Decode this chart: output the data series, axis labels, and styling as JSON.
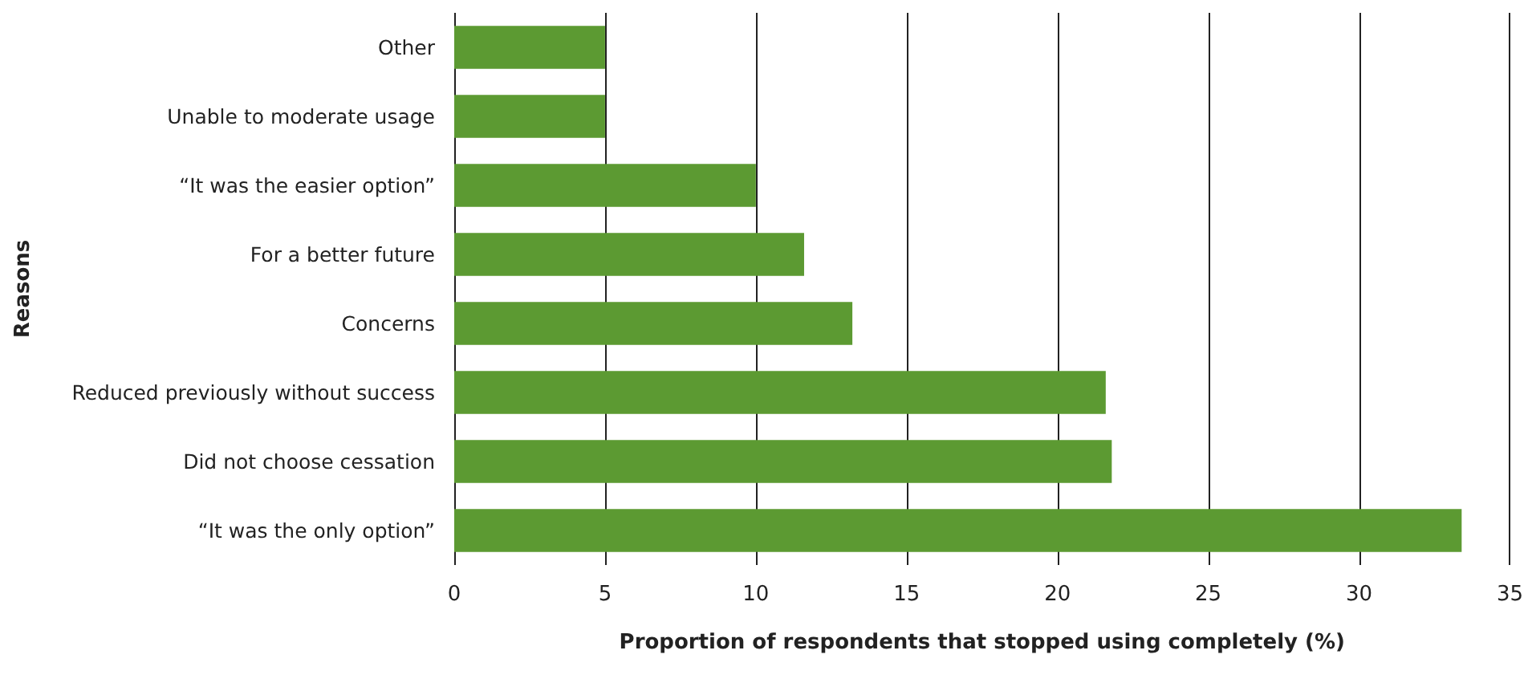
{
  "chart_data": {
    "type": "bar",
    "orientation": "horizontal",
    "xlabel": "Proportion of respondents that stopped using completely (%)",
    "ylabel": "Reasons",
    "categories": [
      "Other",
      "Unable to moderate usage",
      "“It was the easier option”",
      "For a better future",
      "Concerns",
      "Reduced previously without success",
      "Did not choose cessation",
      "“It was the only option”"
    ],
    "values": [
      5.0,
      5.0,
      10.0,
      11.6,
      13.2,
      21.6,
      21.8,
      33.4
    ],
    "color": "#5c9a32",
    "xlim": [
      0,
      35
    ],
    "xticks": [
      0,
      5,
      10,
      15,
      20,
      25,
      30,
      35
    ],
    "grid": "x"
  }
}
